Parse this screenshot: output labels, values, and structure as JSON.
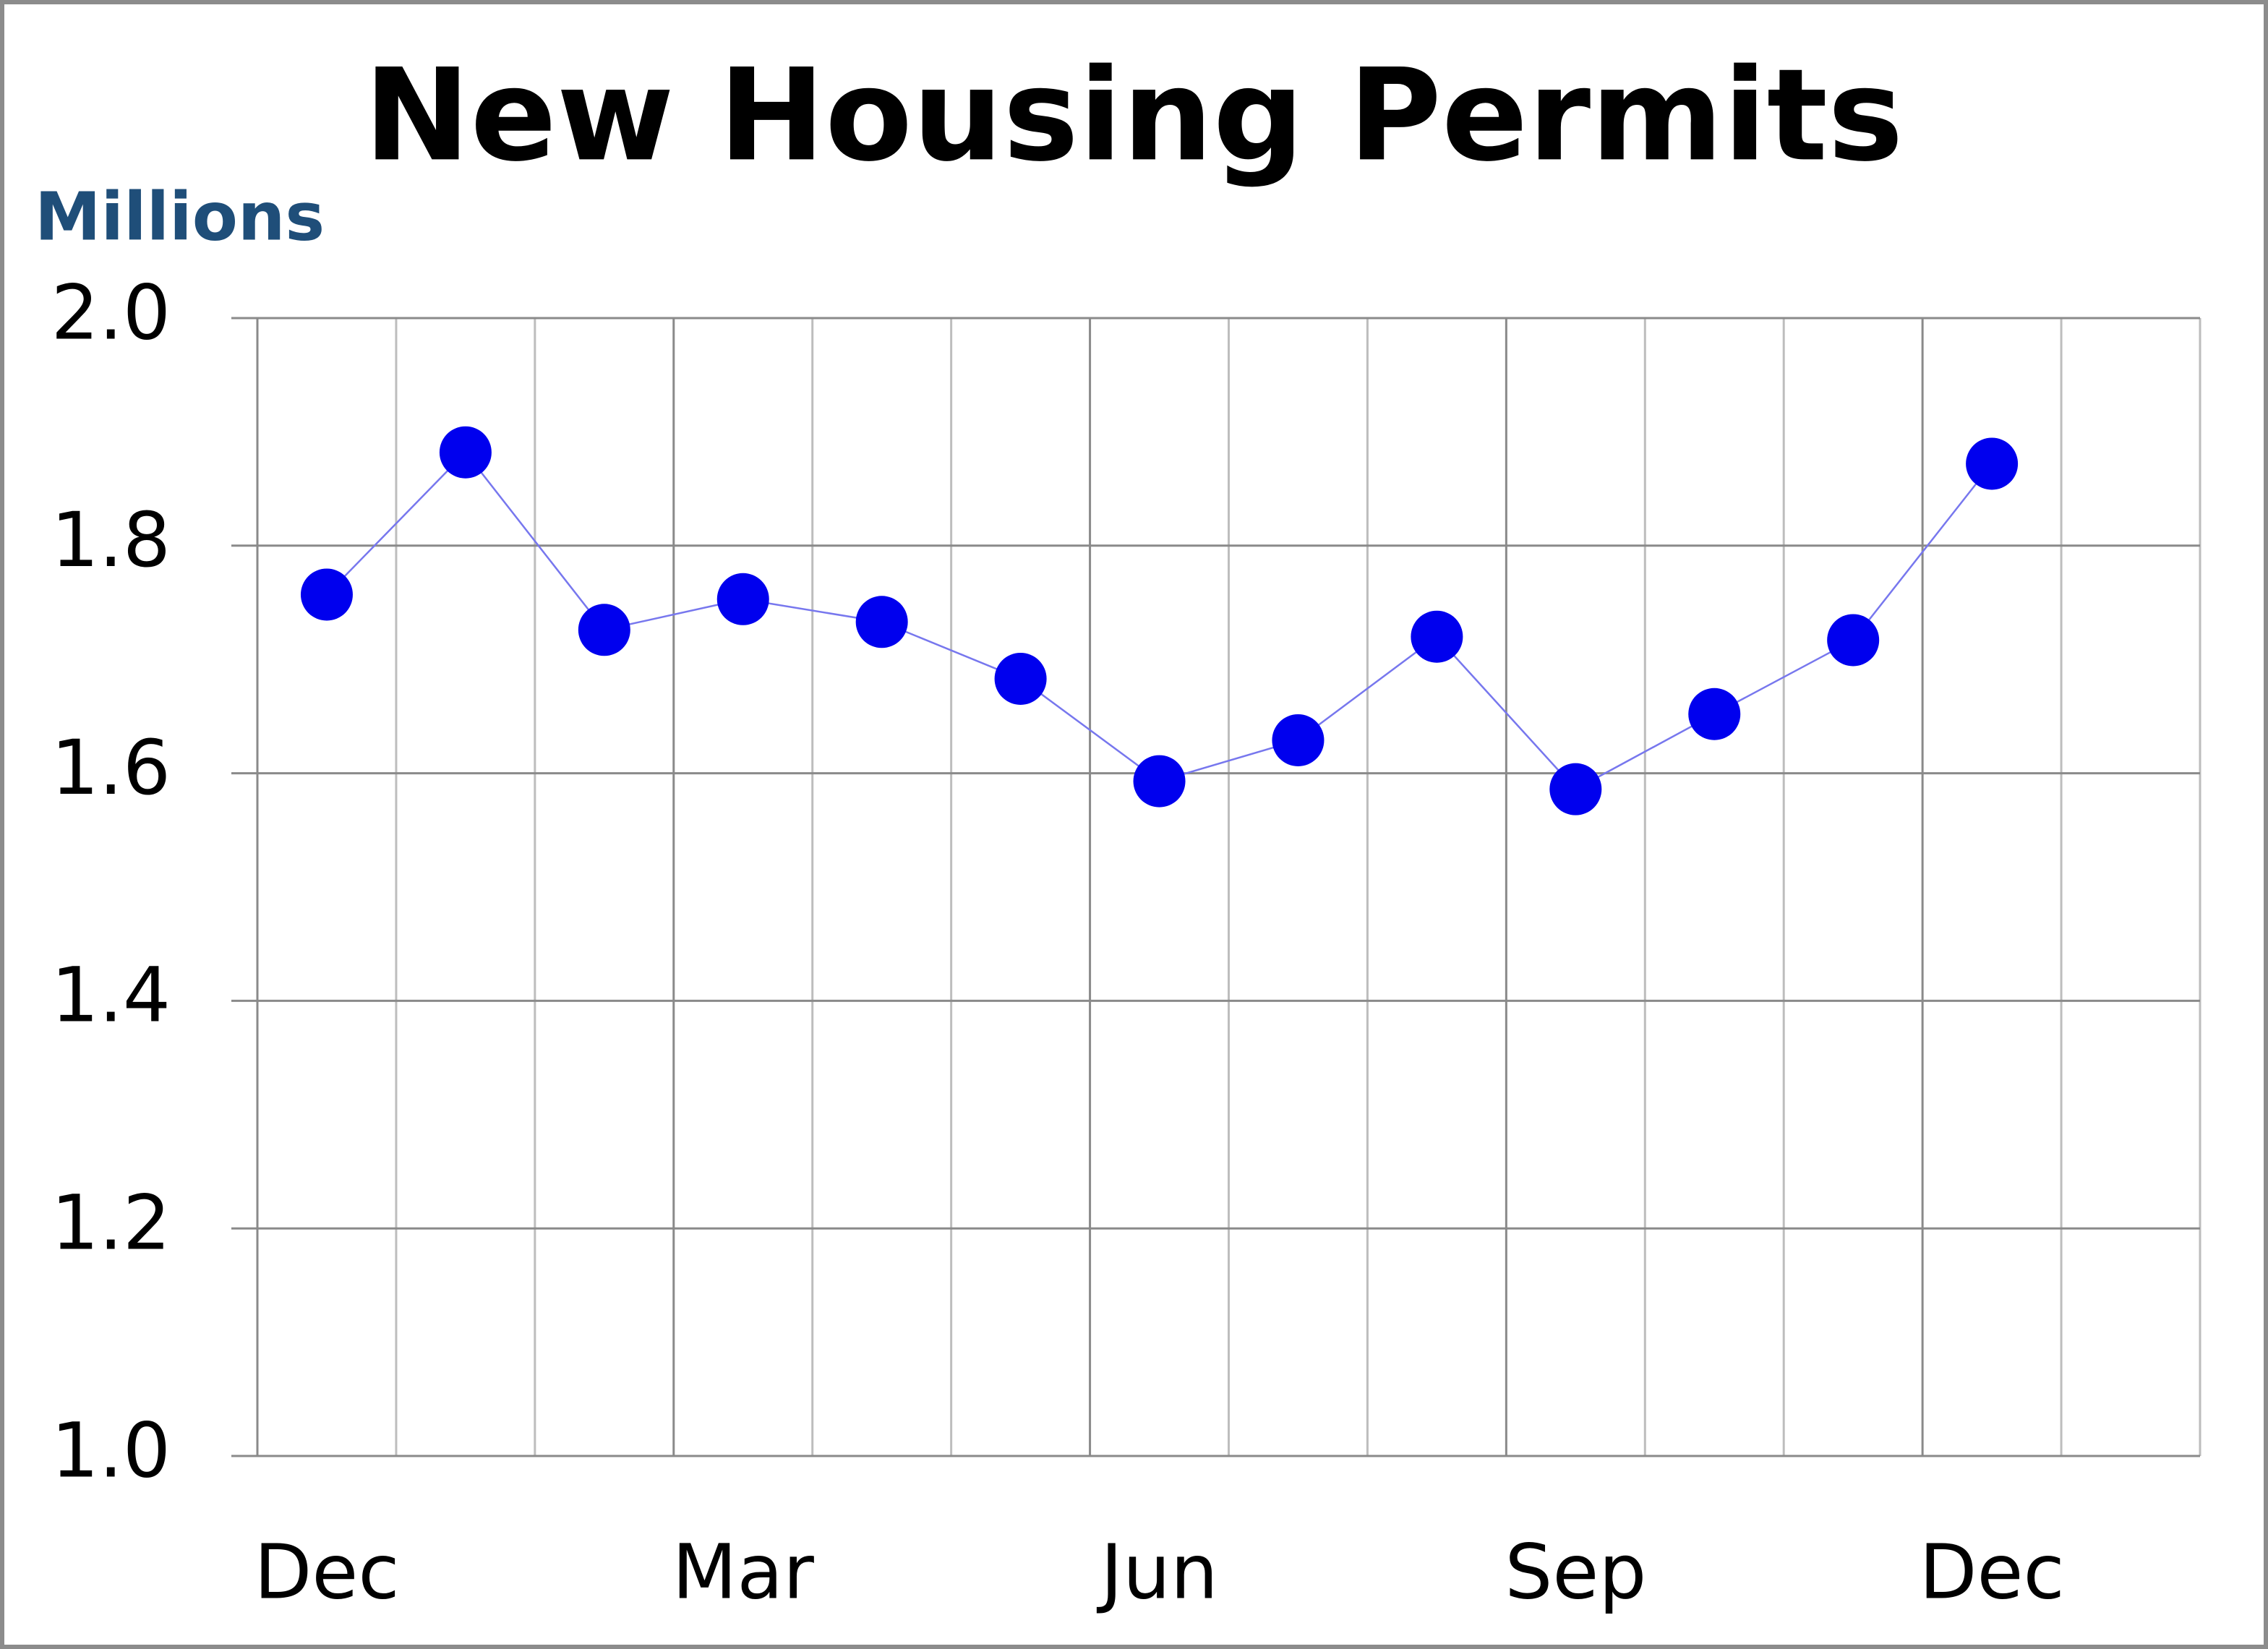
{
  "chart_data": {
    "type": "line",
    "title": "New Housing Permits",
    "y_unit": "Millions",
    "categories": [
      "Dec",
      null,
      null,
      "Mar",
      null,
      null,
      "Jun",
      null,
      null,
      "Sep",
      null,
      null,
      "Dec"
    ],
    "series": [
      {
        "name": "New Housing Permits",
        "color": "#0000ee",
        "values": [
          1.757,
          1.882,
          1.726,
          1.753,
          1.733,
          1.683,
          1.593,
          1.629,
          1.72,
          1.586,
          1.652,
          1.717,
          1.872
        ]
      }
    ],
    "ylim": [
      1.0,
      2.0
    ],
    "yticks": [
      {
        "value": 1.0,
        "label": "1.0"
      },
      1.2,
      1.4,
      1.6,
      1.8,
      {
        "value": 2.0,
        "label": "2.0"
      }
    ],
    "grid": true
  }
}
